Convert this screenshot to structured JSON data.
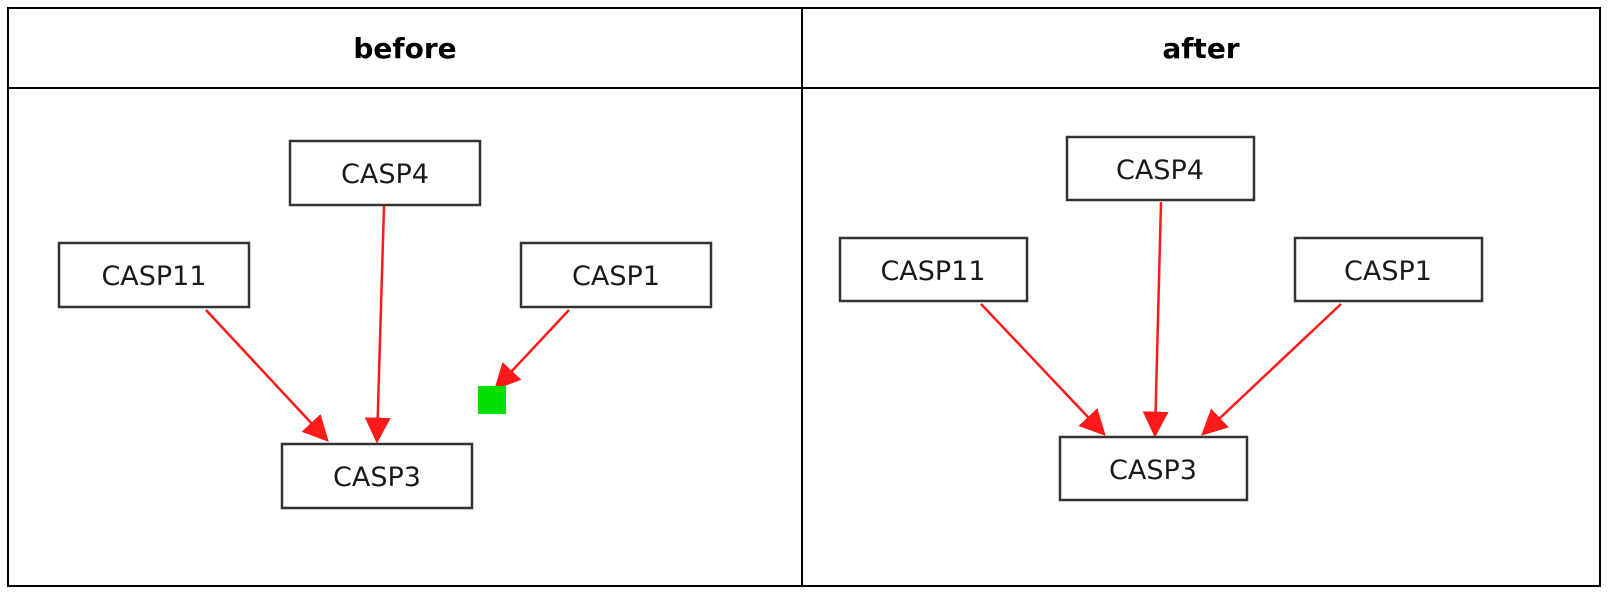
{
  "table": {
    "before_header": "before",
    "after_header": "after"
  },
  "diagram_before": {
    "nodes": [
      "CASP4",
      "CASP11",
      "CASP1",
      "CASP3"
    ],
    "edges": [
      [
        "CASP11",
        "CASP3"
      ],
      [
        "CASP4",
        "CASP3"
      ]
    ],
    "detached_edge": {
      "from": "CASP1",
      "marker": "green-square"
    }
  },
  "diagram_after": {
    "nodes": [
      "CASP4",
      "CASP11",
      "CASP1",
      "CASP3"
    ],
    "edges": [
      [
        "CASP11",
        "CASP3"
      ],
      [
        "CASP4",
        "CASP3"
      ],
      [
        "CASP1",
        "CASP3"
      ]
    ]
  },
  "colors": {
    "edge": "#ff1a1a",
    "marker": "#00e000",
    "border": "#000000"
  }
}
